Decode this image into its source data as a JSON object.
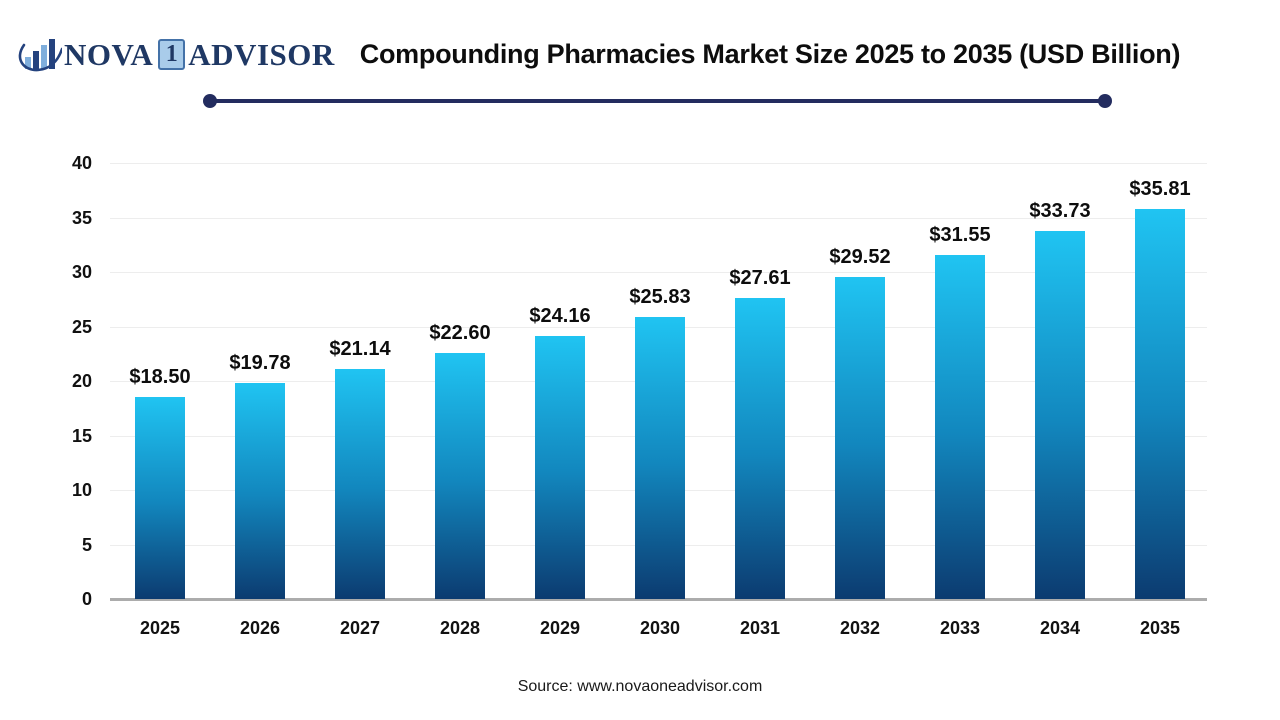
{
  "header": {
    "logo": {
      "text_nova": "NOVA",
      "text_one": "1",
      "text_advisor": "ADVISOR"
    },
    "title": "Compounding Pharmacies Market Size 2025 to 2035 (USD Billion)"
  },
  "chart_data": {
    "type": "bar",
    "title": "Compounding Pharmacies Market Size 2025 to 2035 (USD Billion)",
    "categories": [
      "2025",
      "2026",
      "2027",
      "2028",
      "2029",
      "2030",
      "2031",
      "2032",
      "2033",
      "2034",
      "2035"
    ],
    "values": [
      18.5,
      19.78,
      21.14,
      22.6,
      24.16,
      25.83,
      27.61,
      29.52,
      31.55,
      33.73,
      35.81
    ],
    "value_labels": [
      "$18.50",
      "$19.78",
      "$21.14",
      "$22.60",
      "$24.16",
      "$25.83",
      "$27.61",
      "$29.52",
      "$31.55",
      "$33.73",
      "$35.81"
    ],
    "xlabel": "",
    "ylabel": "",
    "ylim": [
      0,
      40
    ],
    "yticks": [
      0,
      5,
      10,
      15,
      20,
      25,
      30,
      35,
      40
    ],
    "grid": true,
    "legend": "none",
    "bar_gradient_top": "#20C4F2",
    "bar_gradient_bottom": "#0C3B70"
  },
  "footer": {
    "source": "Source: www.novaoneadvisor.com"
  },
  "colors": {
    "accent_navy": "#232C5F",
    "logo_navy": "#1F3864",
    "logo_lightblue": "#7FAEDC",
    "gridline": "#EDEDED",
    "axis_line": "#ACACAC"
  }
}
